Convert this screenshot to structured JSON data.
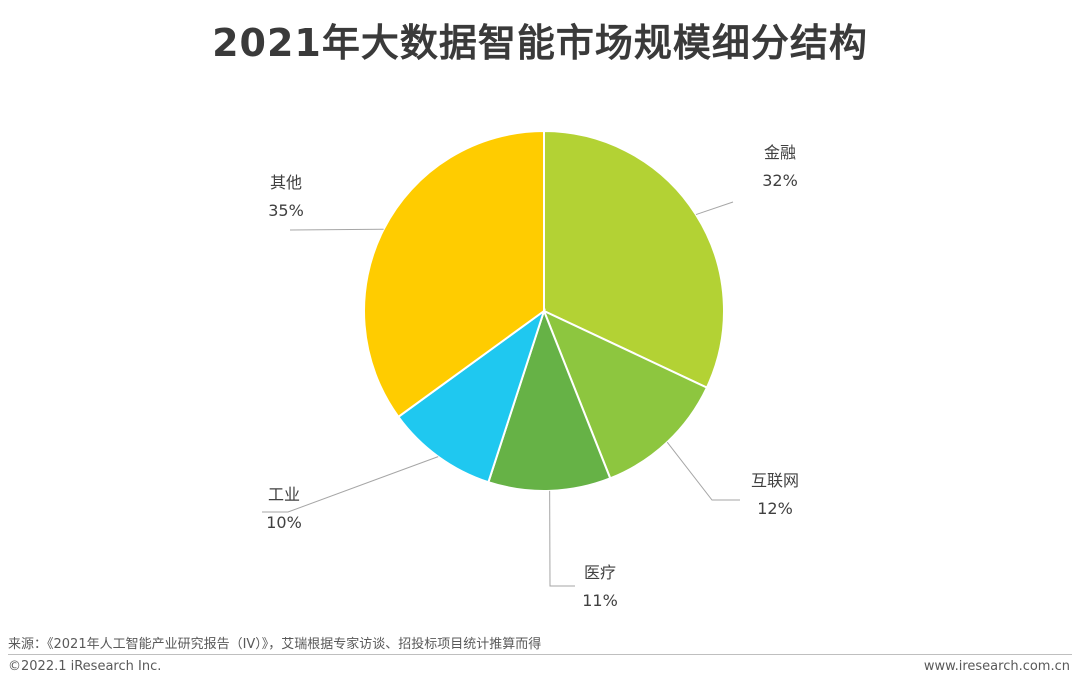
{
  "chart_data": {
    "type": "pie",
    "title": "2021年大数据智能市场规模细分结构",
    "categories": [
      "金融",
      "互联网",
      "医疗",
      "工业",
      "其他"
    ],
    "values": [
      32,
      12,
      11,
      10,
      35
    ],
    "value_labels": [
      "32%",
      "12%",
      "11%",
      "10%",
      "35%"
    ],
    "colors": [
      "#b3d234",
      "#8dc63f",
      "#66b246",
      "#1fc8f0",
      "#ffcc00"
    ],
    "legend": "none",
    "start_angle": "top",
    "direction": "clockwise"
  },
  "footer": {
    "source": "来源：《2021年人工智能产业研究报告（IV）》，艾瑞根据专家访谈、招投标项目统计推算而得",
    "copyright": "©2022.1 iResearch Inc.",
    "website": "www.iresearch.com.cn"
  }
}
